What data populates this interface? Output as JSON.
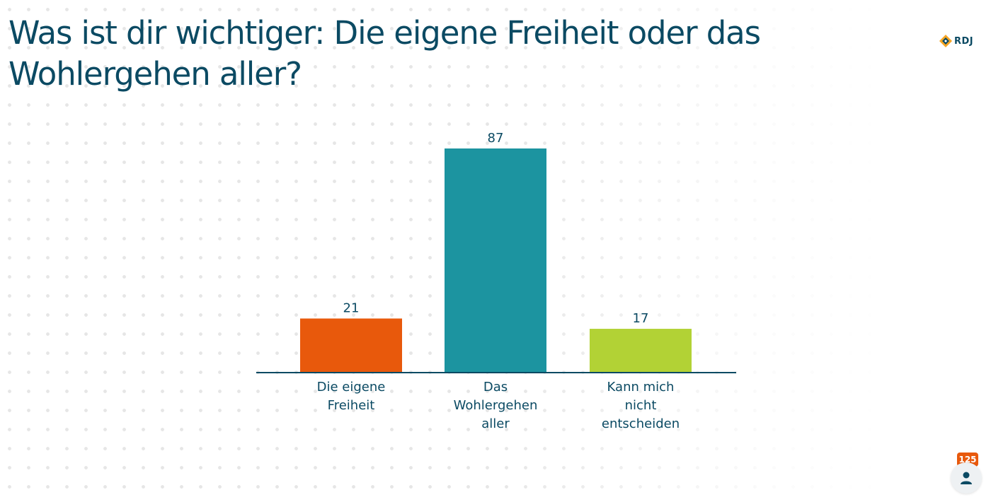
{
  "page": {
    "title": "Was ist dir wichtiger: Die eigene Freiheit oder das Wohlergehen aller?",
    "logo_text": "RDJ",
    "response_count": "125",
    "logo_icon": "diamond-logo-icon",
    "avatar_icon": "person-icon"
  },
  "chart_data": {
    "type": "bar",
    "categories": [
      [
        "Die eigene",
        "Freiheit"
      ],
      [
        "Das",
        "Wohlergehen",
        "aller"
      ],
      [
        "Kann mich",
        "nicht",
        "entscheiden"
      ]
    ],
    "values": [
      21,
      87,
      17
    ],
    "colors": [
      "#e8590c",
      "#1c94a0",
      "#b2d235"
    ],
    "data_labels": true,
    "grid": false,
    "legend": "none"
  },
  "colors": {
    "text": "#0b4a63",
    "baseline": "#0b4a63",
    "badge": "#e8590c"
  }
}
